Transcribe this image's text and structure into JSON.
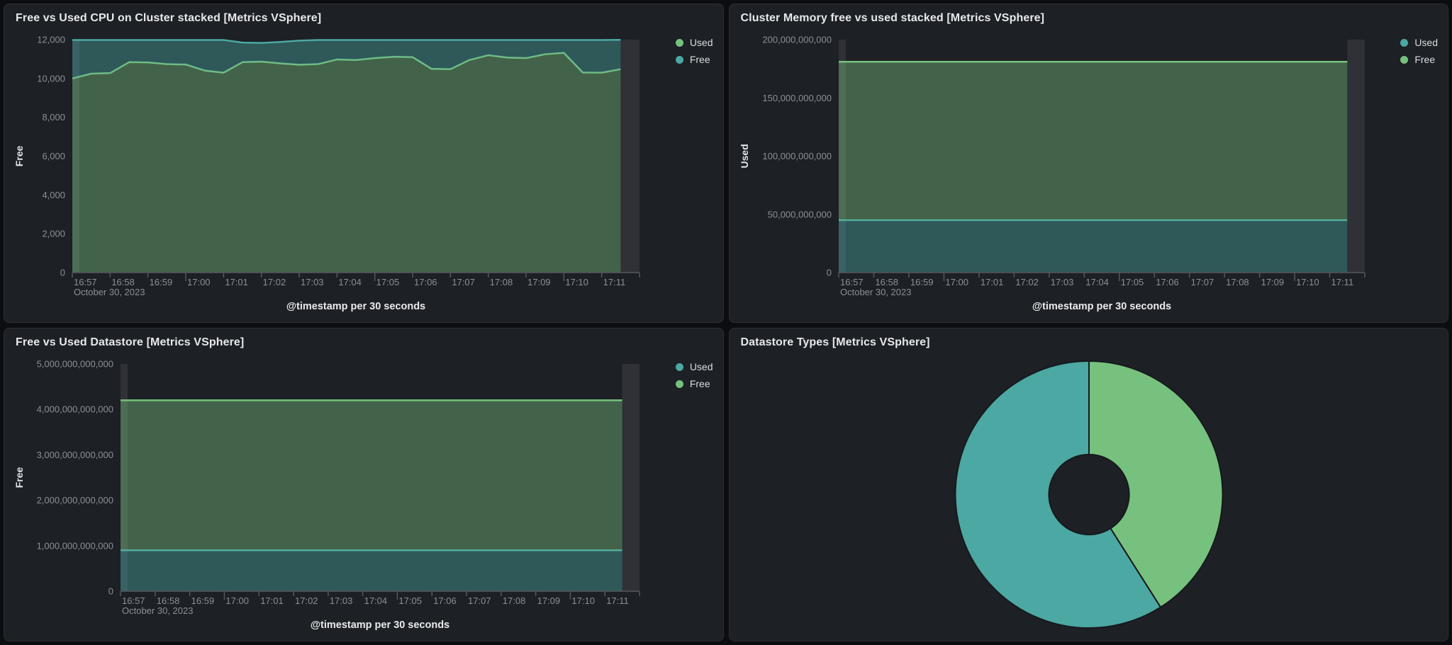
{
  "page": {
    "background": "#0c0d10",
    "panel_background": "#1d2025",
    "accent_green": "#77C17E",
    "accent_teal": "#4BA8A2"
  },
  "chart_data": [
    {
      "id": "cpu",
      "type": "area",
      "stacked": true,
      "title": "Free vs Used CPU on Cluster stacked [Metrics VSphere]",
      "ylabel": "Free",
      "xlabel": "@timestamp per 30 seconds",
      "date_annotation": "October 30, 2023",
      "ylim": [
        0,
        12000
      ],
      "y_tick_values": [
        0,
        2000,
        4000,
        6000,
        8000,
        10000,
        12000
      ],
      "x_tick_labels": [
        "16:57",
        "16:58",
        "16:59",
        "17:00",
        "17:01",
        "17:02",
        "17:03",
        "17:04",
        "17:05",
        "17:06",
        "17:07",
        "17:08",
        "17:09",
        "17:10",
        "17:11"
      ],
      "x_major_ticks": [
        "17:00",
        "17:05",
        "17:10"
      ],
      "bucket_seconds": 30,
      "n_points": 30,
      "grid": false,
      "legend_position": "right",
      "legend": [
        {
          "label": "Used",
          "color": "#77C17E"
        },
        {
          "label": "Free",
          "color": "#4BA8A2"
        }
      ],
      "series": [
        {
          "name": "Used",
          "color": "#77C17E",
          "values": [
            10000,
            10250,
            10280,
            10840,
            10830,
            10740,
            10720,
            10410,
            10300,
            10840,
            10870,
            10780,
            10710,
            10740,
            10980,
            10950,
            11050,
            11120,
            11100,
            10500,
            10480,
            10950,
            11200,
            11080,
            11050,
            11250,
            11320,
            10310,
            10300,
            10480
          ]
        },
        {
          "name": "Free",
          "color": "#4BA8A2",
          "values": [
            1980,
            1730,
            1700,
            1140,
            1150,
            1240,
            1260,
            1570,
            1680,
            1010,
            960,
            1100,
            1240,
            1240,
            1000,
            1030,
            930,
            860,
            880,
            1480,
            1500,
            1030,
            780,
            900,
            930,
            730,
            660,
            1670,
            1680,
            1510
          ]
        }
      ]
    },
    {
      "id": "memory",
      "type": "area",
      "stacked": true,
      "title": "Cluster Memory free vs used stacked [Metrics VSphere]",
      "ylabel": "Used",
      "xlabel": "@timestamp per 30 seconds",
      "date_annotation": "October 30, 2023",
      "ylim": [
        0,
        200000000000
      ],
      "y_tick_values": [
        0,
        50000000000,
        100000000000,
        150000000000,
        200000000000
      ],
      "x_tick_labels": [
        "16:57",
        "16:58",
        "16:59",
        "17:00",
        "17:01",
        "17:02",
        "17:03",
        "17:04",
        "17:05",
        "17:06",
        "17:07",
        "17:08",
        "17:09",
        "17:10",
        "17:11"
      ],
      "x_major_ticks": [
        "17:00",
        "17:05",
        "17:10"
      ],
      "bucket_seconds": 30,
      "n_points": 30,
      "grid": false,
      "legend_position": "right",
      "legend": [
        {
          "label": "Used",
          "color": "#4BA8A2"
        },
        {
          "label": "Free",
          "color": "#77C17E"
        }
      ],
      "series": [
        {
          "name": "Used",
          "color": "#4BA8A2",
          "value": 45000000000
        },
        {
          "name": "Free",
          "color": "#77C17E",
          "value": 136000000000
        }
      ]
    },
    {
      "id": "datastore",
      "type": "area",
      "stacked": true,
      "title": "Free vs Used Datastore [Metrics VSphere]",
      "ylabel": "Free",
      "xlabel": "@timestamp per 30 seconds",
      "date_annotation": "October 30, 2023",
      "ylim": [
        0,
        5000000000000
      ],
      "y_tick_values": [
        0,
        1000000000000,
        2000000000000,
        3000000000000,
        4000000000000,
        5000000000000
      ],
      "x_tick_labels": [
        "16:57",
        "16:58",
        "16:59",
        "17:00",
        "17:01",
        "17:02",
        "17:03",
        "17:04",
        "17:05",
        "17:06",
        "17:07",
        "17:08",
        "17:09",
        "17:10",
        "17:11"
      ],
      "x_major_ticks": [
        "17:00",
        "17:05",
        "17:10"
      ],
      "bucket_seconds": 30,
      "n_points": 30,
      "grid": false,
      "legend_position": "right",
      "legend": [
        {
          "label": "Used",
          "color": "#4BA8A2"
        },
        {
          "label": "Free",
          "color": "#77C17E"
        }
      ],
      "series": [
        {
          "name": "Used",
          "color": "#4BA8A2",
          "value": 900000000000
        },
        {
          "name": "Free",
          "color": "#77C17E",
          "value": 3300000000000
        }
      ]
    },
    {
      "id": "datastore_types",
      "type": "pie",
      "donut": true,
      "title": "Datastore Types [Metrics VSphere]",
      "start_angle_deg": 0,
      "slices": [
        {
          "color": "#77C17E",
          "color_name": "green",
          "fraction": 0.41
        },
        {
          "color": "#4BA8A2",
          "color_name": "teal",
          "fraction": 0.59
        }
      ]
    }
  ]
}
